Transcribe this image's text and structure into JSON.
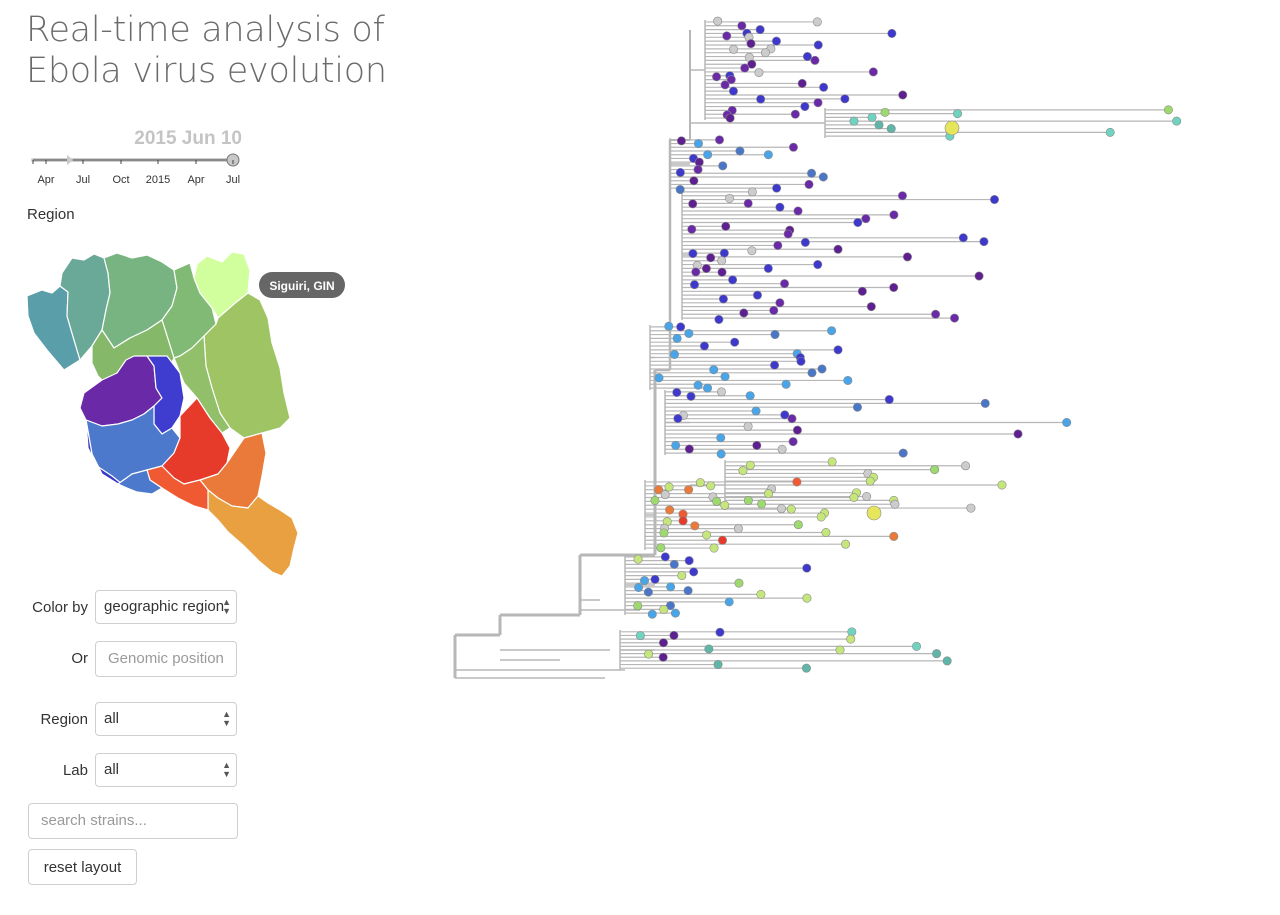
{
  "title": "Real-time analysis of Ebola virus evolution",
  "timeline": {
    "selected_date": "2015 Jun 10",
    "ticks": [
      "Apr",
      "Jul",
      "Oct",
      "2015",
      "Apr",
      "Jul"
    ]
  },
  "map": {
    "heading": "Region",
    "tooltip": "Siguiri, GIN"
  },
  "controls": {
    "color_by_label": "Color by",
    "color_by_value": "geographic region",
    "or_label": "Or",
    "genomic_position_placeholder": "Genomic position",
    "region_label": "Region",
    "region_value": "all",
    "lab_label": "Lab",
    "lab_value": "all",
    "search_placeholder": "search strains...",
    "reset_label": "reset layout"
  },
  "colors": {
    "branch": "#b7b7b7",
    "handle": "#c8c8c8",
    "tooltip_bg": "#666666",
    "region_palette": [
      "#5e2090",
      "#6a2aa8",
      "#3e39cc",
      "#4a76c8",
      "#4aa5e8",
      "#5fb6a8",
      "#6fd3bf",
      "#9ed96f",
      "#c5e67a",
      "#e6e65c",
      "#d5ff9a",
      "#e63a2a",
      "#f05a32",
      "#ea7a3a",
      "#e9a040",
      "#cccccc"
    ]
  }
}
